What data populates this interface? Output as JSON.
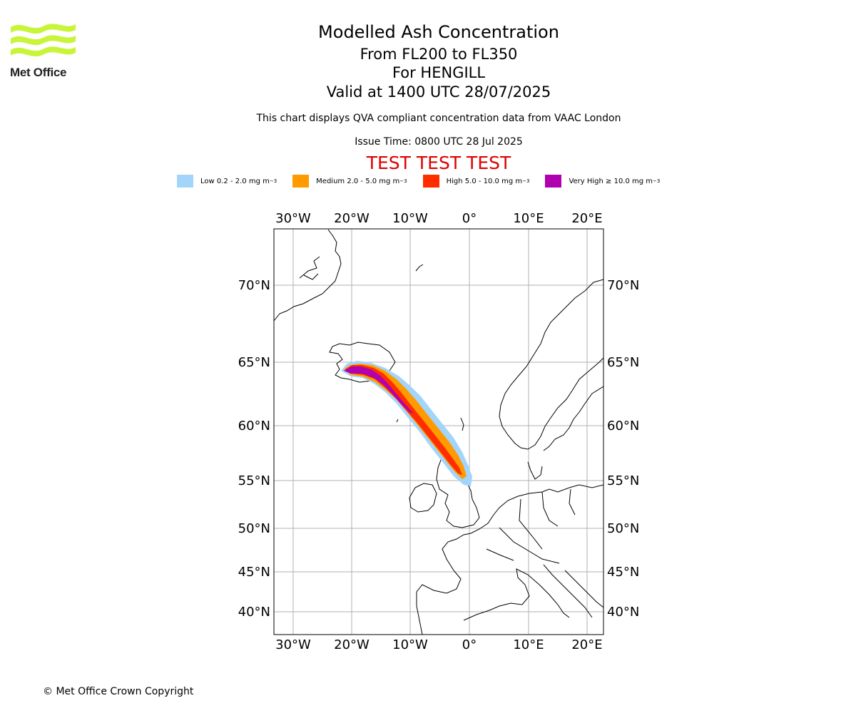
{
  "logo": {
    "text": "Met Office",
    "color": "#c8f53a"
  },
  "title": "Modelled Ash Concentration",
  "levels": "From FL200 to FL350",
  "volcano": "For HENGILL",
  "valid": "Valid at 1400 UTC 28/07/2025",
  "description": "This chart displays QVA compliant concentration data from VAAC London",
  "issue_time": "Issue Time: 0800 UTC 28 Jul 2025",
  "test_banner": "TEST TEST TEST",
  "legend": [
    {
      "label": "Low 0.2 - 2.0 mg m",
      "sup": "−3",
      "color": "#a3d5fb"
    },
    {
      "label": "Medium 2.0 - 5.0 mg m",
      "sup": "−3",
      "color": "#ff9a00"
    },
    {
      "label": "High 5.0 - 10.0 mg m",
      "sup": "−3",
      "color": "#ff2d00"
    },
    {
      "label": "Very High  ≥  10.0 mg m",
      "sup": "−3",
      "color": "#b000b0"
    }
  ],
  "map": {
    "lon_labels": [
      "30°W",
      "20°W",
      "10°W",
      "0°",
      "10°E",
      "20°E"
    ],
    "lat_labels": [
      "70°N",
      "65°N",
      "60°N",
      "55°N",
      "50°N",
      "45°N",
      "40°N"
    ],
    "grid": true
  },
  "copyright": "© Met Office Crown Copyright"
}
